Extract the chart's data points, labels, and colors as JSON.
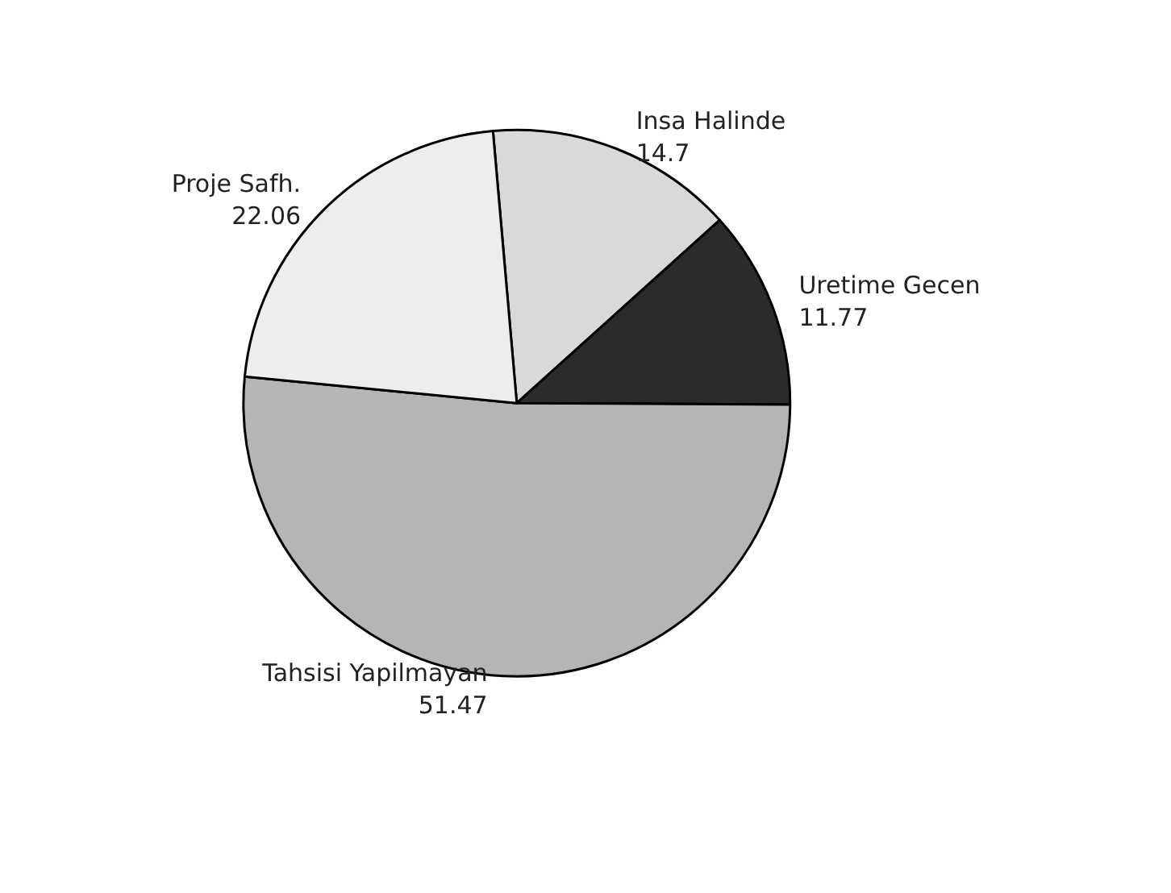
{
  "chart_data": {
    "type": "pie",
    "categories": [
      "Insa Halinde",
      "Uretime Gecen",
      "Tahsisi Yapilmayan",
      "Proje Safh."
    ],
    "values": [
      14.7,
      11.77,
      51.47,
      22.06
    ],
    "colors": [
      "#d9d9d9",
      "#2b2b2b",
      "#b5b5b5",
      "#ededed"
    ],
    "data_labels": true,
    "legend": false
  }
}
